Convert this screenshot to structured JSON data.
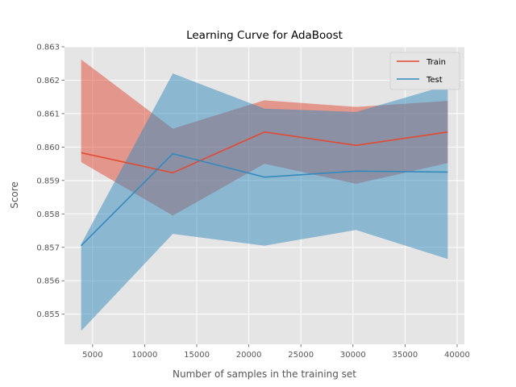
{
  "chart_data": {
    "type": "line",
    "title": "Learning Curve for AdaBoost",
    "xlabel": "Number of samples in the training set",
    "ylabel": "Score",
    "xlim": [
      2300,
      40700
    ],
    "ylim": [
      0.8541,
      0.863
    ],
    "xticks": [
      5000,
      10000,
      15000,
      20000,
      25000,
      30000,
      35000,
      40000
    ],
    "yticks": [
      0.855,
      0.856,
      0.857,
      0.858,
      0.859,
      0.86,
      0.861,
      0.862,
      0.863
    ],
    "grid": true,
    "legend_position": "top-right",
    "x": [
      3900,
      12700,
      21500,
      30300,
      39100
    ],
    "series": [
      {
        "name": "Train",
        "color": "#E24A33",
        "values": [
          0.85983,
          0.85923,
          0.86045,
          0.86005,
          0.86045
        ],
        "band_upper": [
          0.86262,
          0.86055,
          0.8614,
          0.8612,
          0.86138
        ],
        "band_lower": [
          0.85955,
          0.85795,
          0.8595,
          0.8589,
          0.85952
        ]
      },
      {
        "name": "Test",
        "color": "#348ABD",
        "values": [
          0.85705,
          0.8598,
          0.8591,
          0.85928,
          0.85925
        ],
        "band_upper": [
          0.8571,
          0.8622,
          0.86115,
          0.86105,
          0.86185
        ],
        "band_lower": [
          0.8545,
          0.8574,
          0.85705,
          0.85752,
          0.85665
        ]
      }
    ]
  }
}
